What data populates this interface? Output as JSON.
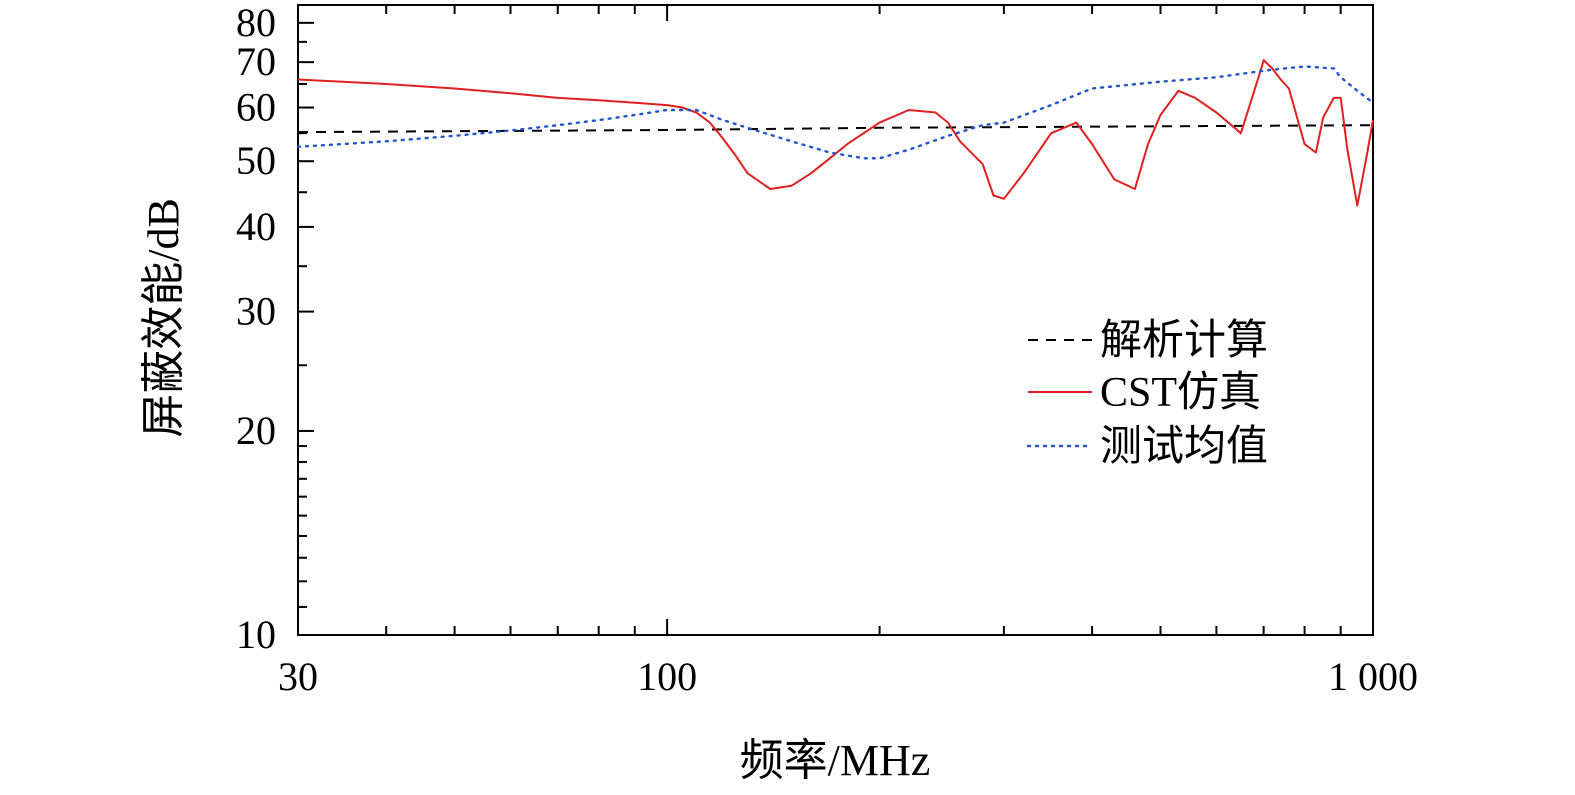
{
  "chart_data": {
    "type": "line",
    "title": "",
    "xlabel": "频率/MHz",
    "ylabel": "屏蔽效能/dB",
    "x_scale": "log",
    "y_scale": "log",
    "xlim": [
      30,
      1000
    ],
    "ylim": [
      10,
      85
    ],
    "x_ticks": [
      {
        "value": 30,
        "label": "30"
      },
      {
        "value": 100,
        "label": "100"
      },
      {
        "value": 1000,
        "label": "1 000"
      }
    ],
    "y_ticks": [
      {
        "value": 10,
        "label": "10"
      },
      {
        "value": 20,
        "label": "20"
      },
      {
        "value": 30,
        "label": "30"
      },
      {
        "value": 40,
        "label": "40"
      },
      {
        "value": 50,
        "label": "50"
      },
      {
        "value": 60,
        "label": "60"
      },
      {
        "value": 70,
        "label": "70"
      },
      {
        "value": 80,
        "label": "80"
      }
    ],
    "grid": false,
    "legend_position": "right",
    "series": [
      {
        "name": "解析计算",
        "color": "#000000",
        "style": "dashed",
        "x": [
          30,
          100,
          200,
          500,
          1000
        ],
        "y": [
          55.2,
          55.6,
          56.0,
          56.3,
          56.5
        ]
      },
      {
        "name": "CST仿真",
        "color": "#e02020",
        "style": "solid",
        "x": [
          30,
          40,
          50,
          60,
          70,
          80,
          90,
          100,
          105,
          110,
          115,
          120,
          125,
          130,
          140,
          150,
          160,
          170,
          180,
          200,
          220,
          240,
          250,
          260,
          280,
          290,
          300,
          320,
          350,
          380,
          400,
          430,
          460,
          480,
          500,
          530,
          560,
          600,
          650,
          690,
          700,
          720,
          740,
          760,
          800,
          830,
          850,
          880,
          900,
          920,
          950,
          980,
          1000
        ],
        "y": [
          66,
          65,
          64,
          63,
          62,
          61.5,
          61,
          60.5,
          60,
          59,
          57,
          54,
          51,
          48,
          45.5,
          46,
          48,
          50.5,
          53,
          57,
          59.5,
          59,
          57,
          53.5,
          49.5,
          44.5,
          44,
          48,
          55,
          57,
          53,
          47,
          45.5,
          53,
          58.5,
          63.5,
          62,
          59,
          55,
          67,
          70.5,
          68.5,
          66,
          64,
          53,
          51.5,
          58,
          62,
          62,
          52,
          43,
          51,
          57.5
        ]
      },
      {
        "name": "测试均值",
        "color": "#2255cc",
        "style": "dotted",
        "x": [
          30,
          40,
          50,
          60,
          70,
          80,
          90,
          100,
          110,
          120,
          130,
          150,
          170,
          190,
          200,
          220,
          250,
          280,
          300,
          350,
          400,
          500,
          600,
          700,
          800,
          880,
          900,
          950,
          1000
        ],
        "y": [
          52.5,
          53.5,
          54.5,
          55.5,
          56.5,
          57.5,
          58.5,
          59.5,
          59.5,
          57.5,
          56,
          53.5,
          51.5,
          50.5,
          50.5,
          52,
          54.5,
          56.5,
          57,
          60.5,
          64,
          65.5,
          66.5,
          68,
          69,
          68.5,
          66.5,
          63.5,
          61
        ]
      }
    ]
  }
}
